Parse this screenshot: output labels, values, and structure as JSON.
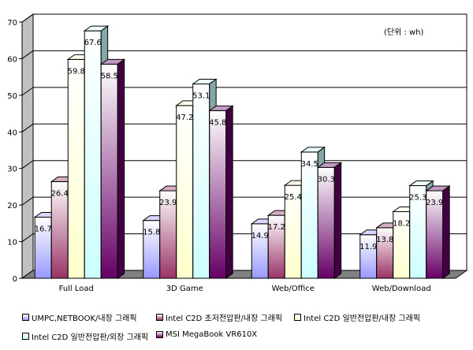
{
  "chart_data": {
    "type": "bar",
    "unit_note": "(단위 : wh)",
    "categories": [
      "Full Load",
      "3D Game",
      "Web/Office",
      "Web/Download"
    ],
    "y_ticks": [
      "0",
      "10",
      "20",
      "30",
      "40",
      "50",
      "60",
      "70"
    ],
    "ylim": [
      0,
      70
    ],
    "grid": true,
    "legend_position": "bottom",
    "series": [
      {
        "name": "UMPC,NETBOOK/내장 그래픽",
        "values": [
          16.7,
          15.8,
          14.9,
          11.9
        ],
        "labels": [
          "16.7",
          "15.8",
          "14.9",
          "11.9"
        ],
        "color": "#9999ff"
      },
      {
        "name": "Intel C2D 초저전압판/내장 그래픽",
        "values": [
          26.4,
          23.9,
          17.2,
          13.8
        ],
        "labels": [
          "26.4",
          "23.9",
          "17.2",
          "13.8"
        ],
        "color": "#993366"
      },
      {
        "name": "Intel C2D 일반전압판/내장 그래픽",
        "values": [
          59.8,
          47.2,
          25.4,
          18.2
        ],
        "labels": [
          "59.8",
          "47.2",
          "25.4",
          "18.2"
        ],
        "color": "#ffffcc"
      },
      {
        "name": "Intel C2D 일반전압판/외장 그래픽",
        "values": [
          67.6,
          53.1,
          34.5,
          25.3
        ],
        "labels": [
          "67.6",
          "53.1",
          "34.5",
          "25.3"
        ],
        "color": "#ccffff"
      },
      {
        "name": "MSI MegaBook VR610X",
        "values": [
          58.5,
          45.8,
          30.3,
          23.9
        ],
        "labels": [
          "58.5",
          "45.8",
          "30.3",
          "23.9"
        ],
        "color": "#660066"
      }
    ]
  }
}
